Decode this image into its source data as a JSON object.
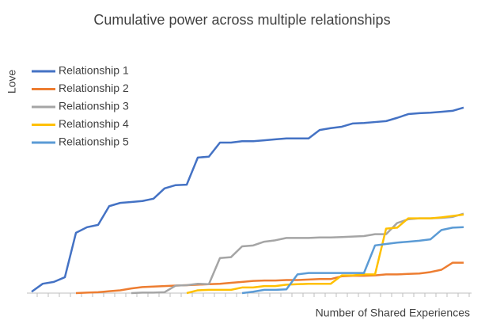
{
  "chart_data": {
    "type": "line",
    "title": "Cumulative power across multiple relationships",
    "y_label": "Love",
    "x_label": "Number of Shared Experiences",
    "categories": [
      null,
      null,
      null,
      null,
      null,
      null,
      null,
      null,
      null,
      null,
      null,
      null,
      null,
      null,
      null,
      null,
      null,
      null,
      null,
      null,
      null,
      null,
      null,
      null,
      null,
      null,
      null,
      null,
      null,
      null,
      null,
      null,
      null,
      null,
      null,
      null,
      null,
      null,
      null,
      null
    ],
    "ylim": [
      0,
      4
    ],
    "legend": "top-left",
    "series": [
      {
        "name": "Relationship 1",
        "color": "#4472c4",
        "values": [
          0.03,
          0.2,
          0.24,
          0.34,
          1.29,
          1.41,
          1.46,
          1.86,
          1.93,
          1.95,
          1.97,
          2.02,
          2.24,
          2.31,
          2.32,
          2.9,
          2.92,
          3.22,
          3.22,
          3.25,
          3.25,
          3.27,
          3.29,
          3.31,
          3.31,
          3.31,
          3.49,
          3.53,
          3.56,
          3.63,
          3.64,
          3.66,
          3.68,
          3.75,
          3.83,
          3.85,
          3.86,
          3.88,
          3.9,
          3.97
        ]
      },
      {
        "name": "Relationship 2",
        "color": "#ed7d31",
        "values": [
          null,
          null,
          null,
          null,
          0,
          0.01,
          0.02,
          0.04,
          0.06,
          0.1,
          0.13,
          0.14,
          0.15,
          0.16,
          0.17,
          0.18,
          0.19,
          0.2,
          0.22,
          0.24,
          0.26,
          0.27,
          0.27,
          0.28,
          0.28,
          0.29,
          0.3,
          0.3,
          0.36,
          0.37,
          0.37,
          0.38,
          0.4,
          0.4,
          0.41,
          0.42,
          0.45,
          0.5,
          0.65,
          0.65
        ]
      },
      {
        "name": "Relationship 3",
        "color": "#a5a5a5",
        "values": [
          null,
          null,
          null,
          null,
          null,
          null,
          null,
          null,
          null,
          0,
          0.01,
          0.01,
          0.02,
          0.16,
          0.17,
          0.2,
          0.19,
          0.75,
          0.77,
          1.0,
          1.02,
          1.1,
          1.13,
          1.18,
          1.18,
          1.18,
          1.19,
          1.19,
          1.2,
          1.21,
          1.22,
          1.26,
          1.26,
          1.5,
          1.58,
          1.6,
          1.6,
          1.61,
          1.63,
          1.7
        ]
      },
      {
        "name": "Relationship 4",
        "color": "#ffc000",
        "values": [
          null,
          null,
          null,
          null,
          null,
          null,
          null,
          null,
          null,
          null,
          null,
          null,
          null,
          null,
          0,
          0.06,
          0.07,
          0.07,
          0.07,
          0.12,
          0.12,
          0.15,
          0.15,
          0.18,
          0.19,
          0.2,
          0.2,
          0.2,
          0.38,
          0.38,
          0.4,
          0.4,
          1.38,
          1.4,
          1.6,
          1.6,
          1.6,
          1.62,
          1.65,
          1.68
        ]
      },
      {
        "name": "Relationship 5",
        "color": "#5b9bd5",
        "values": [
          null,
          null,
          null,
          null,
          null,
          null,
          null,
          null,
          null,
          null,
          null,
          null,
          null,
          null,
          null,
          null,
          null,
          null,
          null,
          0,
          0.03,
          0.07,
          0.07,
          0.08,
          0.4,
          0.43,
          0.43,
          0.43,
          0.43,
          0.43,
          0.43,
          1.02,
          1.05,
          1.08,
          1.1,
          1.12,
          1.15,
          1.35,
          1.4,
          1.41
        ]
      }
    ]
  }
}
